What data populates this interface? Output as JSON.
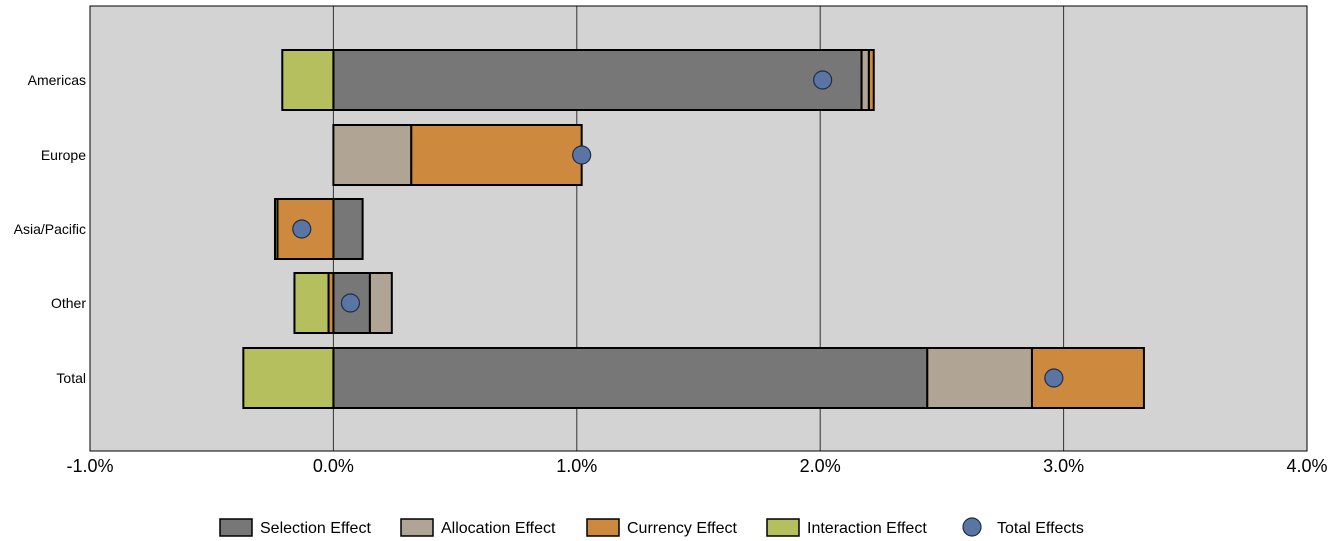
{
  "chart_data": {
    "type": "bar",
    "orientation": "horizontal",
    "stacked": true,
    "categories": [
      "Americas",
      "Europe",
      "Asia/Pacific",
      "Other",
      "Total"
    ],
    "series": [
      {
        "name": "Selection Effect",
        "color": "#777777",
        "values": [
          2.17,
          0.0,
          0.12,
          0.15,
          2.44
        ]
      },
      {
        "name": "Allocation Effect",
        "color": "#b0a595",
        "values": [
          0.03,
          0.32,
          0.0,
          0.09,
          0.43
        ]
      },
      {
        "name": "Currency Effect",
        "color": "#cd8a3f",
        "values": [
          0.02,
          0.7,
          -0.23,
          -0.02,
          0.46
        ]
      },
      {
        "name": "Interaction Effect",
        "color": "#b5bf5e",
        "values": [
          -0.21,
          0.0,
          -0.01,
          -0.14,
          -0.37
        ]
      }
    ],
    "total_effects": {
      "name": "Total Effects",
      "color": "#5a75a3",
      "values": [
        2.01,
        1.02,
        -0.13,
        0.07,
        2.96
      ]
    },
    "xlim": [
      -1.0,
      4.0
    ],
    "x_ticks": [
      -1.0,
      0.0,
      1.0,
      2.0,
      3.0,
      4.0
    ],
    "x_tick_labels": [
      "-1.0%",
      "0.0%",
      "1.0%",
      "2.0%",
      "3.0%",
      "4.0%"
    ],
    "title": "",
    "xlabel": "",
    "ylabel": "",
    "grid": true,
    "legend_position": "bottom",
    "plot_background": "#d3d3d3"
  }
}
